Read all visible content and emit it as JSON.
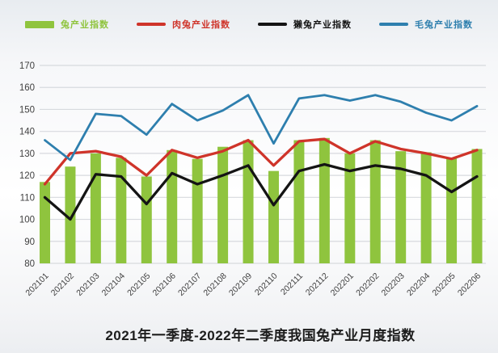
{
  "title": "2021年一季度-2022年二季度我国兔产业月度指数",
  "legend": [
    {
      "label": "兔产业指数",
      "color": "#8fc43e",
      "swatch": "bar"
    },
    {
      "label": "肉兔产业指数",
      "color": "#cf342a",
      "swatch": "line"
    },
    {
      "label": "獭兔产业指数",
      "color": "#141414",
      "swatch": "line"
    },
    {
      "label": "毛兔产业指数",
      "color": "#2e7fae",
      "swatch": "line"
    }
  ],
  "chart_data": {
    "type": "bar",
    "subtype": "bar-line-combo",
    "title": "2021年一季度-2022年二季度我国兔产业月度指数",
    "categories": [
      "202101",
      "202102",
      "202103",
      "202104",
      "202105",
      "202106",
      "202107",
      "202108",
      "202109",
      "202110",
      "202111",
      "202112",
      "202201",
      "202202",
      "202203",
      "202204",
      "202205",
      "202206"
    ],
    "series": [
      {
        "name": "兔产业指数",
        "type": "bar",
        "color": "#8fc43e",
        "values": [
          117,
          124,
          130,
          128,
          119.5,
          131.5,
          127.5,
          133,
          136,
          122,
          136,
          137,
          130,
          136,
          131,
          130.5,
          128,
          132
        ]
      },
      {
        "name": "肉兔产业指数",
        "type": "line",
        "color": "#cf342a",
        "values": [
          116,
          130,
          131,
          128.5,
          120,
          131.5,
          128,
          131,
          136,
          124.5,
          135.5,
          136.5,
          130,
          135.5,
          132,
          130,
          127.5,
          131.5
        ]
      },
      {
        "name": "獭兔产业指数",
        "type": "line",
        "color": "#141414",
        "values": [
          110,
          100,
          120.5,
          119.5,
          107,
          121,
          116,
          120,
          124.5,
          106.5,
          122,
          125,
          122,
          124.5,
          123,
          120,
          112.5,
          119.5
        ]
      },
      {
        "name": "毛兔产业指数",
        "type": "line",
        "color": "#2e7fae",
        "values": [
          136,
          127,
          148,
          147,
          138.5,
          152.5,
          145,
          149.5,
          156.5,
          134.5,
          155,
          156.5,
          154,
          156.5,
          153.5,
          148.5,
          145,
          151.5
        ]
      }
    ],
    "xlabel": "",
    "ylabel": "",
    "ylim": [
      80,
      170
    ],
    "ytick_step": 10,
    "grid": true,
    "legend_position": "top"
  }
}
